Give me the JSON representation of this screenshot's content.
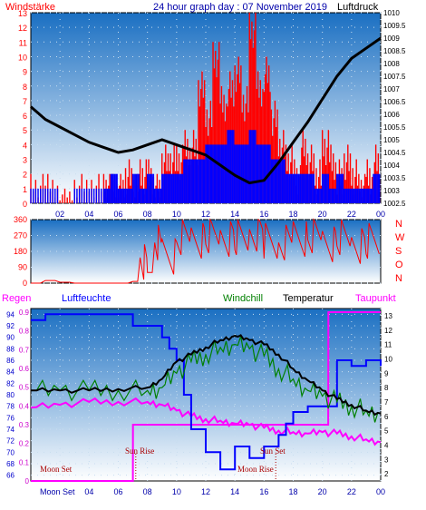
{
  "header": {
    "left_label": "Windstärke",
    "title": "24 hour graph day : 07 November 2019",
    "right_label": "Luftdruck"
  },
  "colors": {
    "wind": "#ff0000",
    "gust": "#0000ff",
    "pressure": "#000000",
    "humidity": "#0000ff",
    "windchill": "#008000",
    "temperature": "#000000",
    "dewpoint": "#ff00ff",
    "rain": "#ff00ff",
    "axis_text_left": "#ff0000",
    "axis_text_time": "#0000aa",
    "plot_top": "#1a6fc2",
    "plot_bottom": "#ffffff"
  },
  "chart_data": [
    {
      "type": "line",
      "panel": "wind-pressure",
      "title": "24 hour graph day : 07 November 2019",
      "ylabel": "Windstärke",
      "y2label": "Luftdruck",
      "ylim": [
        0,
        13
      ],
      "y_ticks": [
        "0",
        "1",
        "2",
        "3",
        "4",
        "5",
        "6",
        "7",
        "8",
        "9",
        "10",
        "11",
        "12",
        "13"
      ],
      "y2lim": [
        1002.5,
        1010
      ],
      "y2_ticks": [
        "1002.5",
        "1003",
        "1003.5",
        "1004",
        "1004.5",
        "1005",
        "1005.5",
        "1006",
        "1006.5",
        "1007",
        "1007.5",
        "1008",
        "1008.5",
        "1009",
        "1009.5",
        "1010"
      ],
      "x_ticks": [
        "02",
        "04",
        "06",
        "08",
        "10",
        "12",
        "14",
        "16",
        "18",
        "20",
        "22",
        "00"
      ],
      "series": [
        {
          "name": "Windstärke (gust)",
          "axis": "left",
          "x": [
            0,
            1,
            2,
            3,
            4,
            5,
            5.5,
            6,
            6.5,
            7,
            7.5,
            8,
            8.5,
            9,
            9.5,
            10,
            10.5,
            11,
            11.5,
            12,
            12.5,
            13,
            13.5,
            14,
            14.5,
            15,
            15.5,
            16,
            16.5,
            17,
            17.5,
            18,
            18.5,
            19,
            19.5,
            20,
            20.5,
            21,
            21.5,
            22,
            22.5,
            23,
            23.5,
            24
          ],
          "values": [
            2,
            2,
            1,
            2,
            2,
            2,
            2,
            2,
            3,
            2,
            3,
            3,
            2,
            4,
            4,
            4,
            5,
            5,
            9,
            7,
            11,
            8,
            9,
            10,
            8,
            13,
            9,
            10,
            7,
            5,
            4,
            3,
            5,
            4,
            3,
            5,
            4,
            3,
            4,
            3,
            2,
            3,
            4,
            2
          ]
        },
        {
          "name": "Windstärke (mean)",
          "axis": "left",
          "x": [
            0,
            1,
            2,
            3,
            4,
            5,
            5.5,
            6,
            6.5,
            7,
            7.5,
            8,
            8.5,
            9,
            9.5,
            10,
            10.5,
            11,
            11.5,
            12,
            12.5,
            13,
            13.5,
            14,
            14.5,
            15,
            15.5,
            16,
            16.5,
            17,
            17.5,
            18,
            18.5,
            19,
            19.5,
            20,
            20.5,
            21,
            21.5,
            22,
            22.5,
            23,
            23.5,
            24
          ],
          "values": [
            1,
            1,
            0,
            1,
            1,
            1,
            2,
            1,
            1,
            2,
            1,
            2,
            1,
            2,
            2,
            2,
            3,
            3,
            3,
            4,
            4,
            4,
            5,
            4,
            4,
            5,
            4,
            4,
            3,
            3,
            2,
            2,
            2,
            2,
            1,
            2,
            1,
            2,
            1,
            1,
            1,
            1,
            2,
            1
          ]
        },
        {
          "name": "Luftdruck",
          "axis": "right",
          "x": [
            0,
            1,
            2,
            3,
            4,
            5,
            6,
            7,
            8,
            9,
            10,
            11,
            12,
            13,
            14,
            15,
            16,
            17,
            18,
            19,
            20,
            21,
            22,
            23,
            24
          ],
          "values": [
            1006.3,
            1005.8,
            1005.5,
            1005.2,
            1004.9,
            1004.7,
            1004.5,
            1004.6,
            1004.8,
            1005.0,
            1004.8,
            1004.6,
            1004.4,
            1004.0,
            1003.6,
            1003.3,
            1003.4,
            1004.1,
            1004.9,
            1005.7,
            1006.6,
            1007.5,
            1008.2,
            1008.6,
            1009.0
          ]
        }
      ]
    },
    {
      "type": "line",
      "panel": "wind-direction",
      "ylim": [
        0,
        360
      ],
      "y_ticks": [
        "0",
        "90",
        "180",
        "270",
        "360"
      ],
      "y2_ticks": [
        "N",
        "W",
        "S",
        "O",
        "N"
      ],
      "series": [
        {
          "name": "Windrichtung",
          "x": [
            0,
            1,
            2,
            3,
            4,
            5,
            6,
            7,
            7.5,
            8,
            8.5,
            9,
            10,
            11,
            12,
            13,
            14,
            15,
            16,
            17,
            18,
            19,
            20,
            21,
            22,
            23,
            24
          ],
          "values": [
            0,
            15,
            5,
            0,
            0,
            0,
            0,
            10,
            120,
            60,
            230,
            150,
            260,
            240,
            270,
            250,
            260,
            280,
            240,
            230,
            250,
            270,
            220,
            260,
            210,
            240,
            200
          ]
        }
      ]
    },
    {
      "type": "line",
      "panel": "temperature-humidity",
      "legend": [
        "Regen",
        "Luftfeuchte",
        "Windchill",
        "Temperatur",
        "Taupunkt"
      ],
      "y_humidity_ticks": [
        "66",
        "68",
        "70",
        "72",
        "74",
        "76",
        "78",
        "80",
        "82",
        "84",
        "86",
        "88",
        "90",
        "92",
        "94"
      ],
      "y_rain_ticks": [
        "0",
        "0.1",
        "0.2",
        "0.3",
        "0.4",
        "0.5",
        "0.6",
        "0.7",
        "0.8",
        "0.9"
      ],
      "y_temp_ticks": [
        "2",
        "3",
        "4",
        "5",
        "6",
        "7",
        "8",
        "9",
        "10",
        "11",
        "12",
        "13"
      ],
      "x_ticks": [
        "02",
        "04",
        "06",
        "08",
        "10",
        "12",
        "14",
        "16",
        "18",
        "20",
        "22",
        "00"
      ],
      "x_moon_label": "Moon Set",
      "annotations": [
        "Moon Set",
        "Sun Rise",
        "Moon Rise",
        "Sun Set"
      ],
      "series": [
        {
          "name": "Luftfeuchte",
          "x": [
            0,
            1,
            2,
            3,
            4,
            5,
            6,
            7,
            8,
            9,
            9.5,
            10,
            10.5,
            11,
            12,
            13,
            14,
            15,
            16,
            17,
            17.5,
            18,
            19,
            20,
            21,
            22,
            23,
            24
          ],
          "values": [
            93,
            94,
            94,
            94,
            94,
            94,
            94,
            92,
            92,
            90,
            88,
            86,
            80,
            74,
            70,
            67,
            71,
            69,
            71,
            73,
            75,
            77,
            78,
            78,
            86,
            85,
            86,
            85
          ]
        },
        {
          "name": "Windchill",
          "x": [
            0,
            2,
            4,
            6,
            8,
            9,
            10,
            11,
            12,
            13,
            14,
            15,
            16,
            17,
            18,
            19,
            20,
            21,
            22,
            23,
            24
          ],
          "values": [
            7.8,
            7.8,
            7.8,
            7.8,
            7.8,
            8.0,
            9.0,
            9.8,
            10.3,
            10.8,
            11.0,
            10.7,
            10.2,
            9.3,
            8.6,
            7.8,
            7.4,
            7.0,
            6.7,
            6.4,
            6.2
          ]
        },
        {
          "name": "Temperatur",
          "x": [
            0,
            2,
            4,
            6,
            8,
            9,
            10,
            11,
            12,
            13,
            14,
            15,
            16,
            17,
            18,
            19,
            20,
            21,
            22,
            23,
            24
          ],
          "values": [
            7.8,
            7.8,
            7.8,
            7.9,
            8.0,
            8.6,
            9.8,
            10.3,
            10.8,
            11.3,
            11.6,
            11.3,
            11.0,
            10.3,
            9.3,
            8.5,
            7.8,
            7.2,
            6.8,
            6.4,
            6.2
          ]
        },
        {
          "name": "Taupunkt",
          "x": [
            0,
            2,
            4,
            6,
            8,
            9,
            10,
            11,
            12,
            13,
            14,
            15,
            16,
            17,
            18,
            19,
            20,
            21,
            22,
            23,
            24
          ],
          "values": [
            6.6,
            6.8,
            7.0,
            7.0,
            7.0,
            6.8,
            6.4,
            6.0,
            5.8,
            5.7,
            5.5,
            5.4,
            5.2,
            5.0,
            4.9,
            4.8,
            4.9,
            4.8,
            4.6,
            4.4,
            4.2
          ]
        },
        {
          "name": "Regen",
          "x": [
            0,
            7,
            7.01,
            20.4,
            20.41,
            24
          ],
          "values": [
            0,
            0,
            0.3,
            0.3,
            0.9,
            0.9
          ]
        }
      ]
    }
  ]
}
